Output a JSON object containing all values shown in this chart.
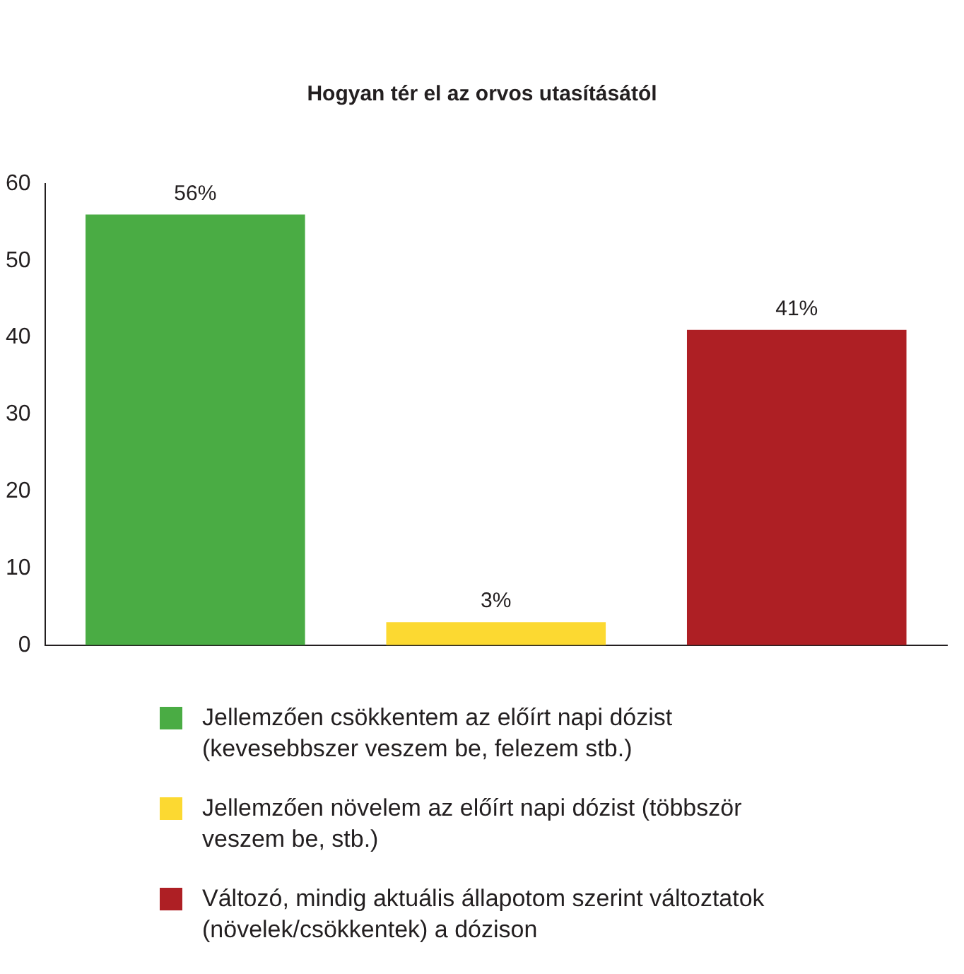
{
  "chart_data": {
    "type": "bar",
    "title": "Hogyan tér el az orvos utasításától",
    "categories": [
      null,
      null,
      null
    ],
    "series": [
      {
        "name": "Jellemzően csökkentem az előírt napi dózist (kevesebbszer veszem be, felezem stb.)",
        "color": "#4aac44",
        "values": [
          56,
          null,
          null
        ],
        "value_labels": [
          "56%",
          null,
          null
        ]
      },
      {
        "name": "Jellemzően növelem az előírt napi dózist (többször veszem be, stb.)",
        "color": "#fcd931",
        "values": [
          null,
          3,
          null
        ],
        "value_labels": [
          null,
          "3%",
          null
        ]
      },
      {
        "name": "Változó, mindig aktuális állapotom szerint változtatok (növelek/csökkentek) a dózison",
        "color": "#ae1f24",
        "values": [
          null,
          null,
          41
        ],
        "value_labels": [
          null,
          null,
          "41%"
        ]
      }
    ],
    "ylim": [
      0,
      60
    ],
    "yticks": [
      0,
      10,
      20,
      30,
      40,
      50,
      60
    ],
    "grid": false,
    "legend": "bottom"
  }
}
